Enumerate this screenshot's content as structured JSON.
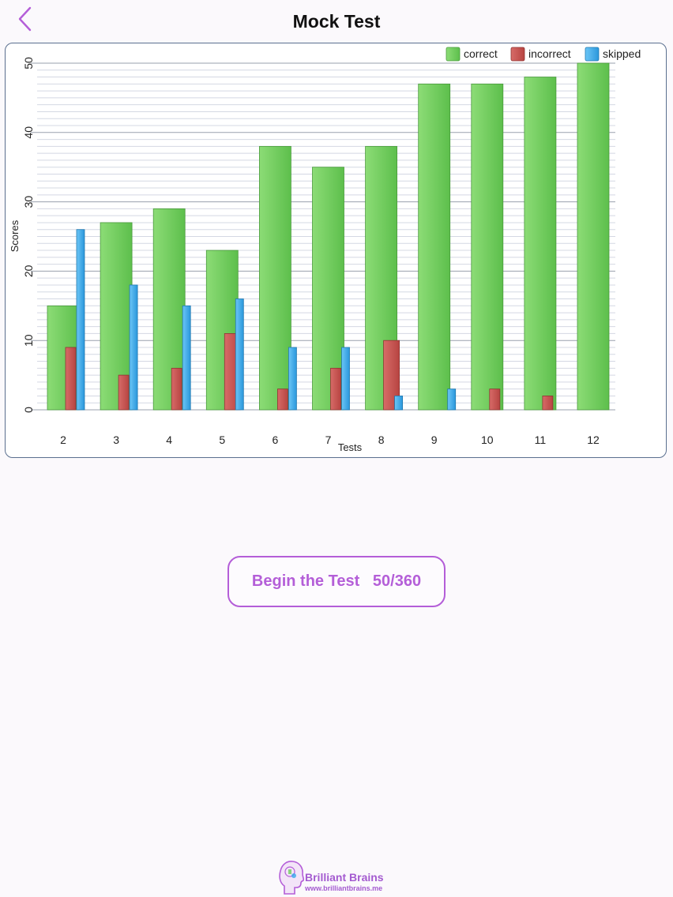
{
  "header": {
    "title": "Mock Test",
    "back_icon": "chevron-left-icon"
  },
  "colors": {
    "accent": "#b45ed8",
    "correct": "#6fce5c",
    "incorrect": "#c65250",
    "skipped": "#34a8ec",
    "card_border": "#5a6f8f"
  },
  "chart_data": {
    "type": "bar",
    "title": "",
    "xlabel": "Tests",
    "ylabel": "Scores",
    "categories": [
      "2",
      "3",
      "4",
      "5",
      "6",
      "7",
      "8",
      "9",
      "10",
      "11",
      "12"
    ],
    "series": [
      {
        "name": "correct",
        "values": [
          15,
          27,
          29,
          23,
          38,
          35,
          38,
          47,
          47,
          48,
          50
        ]
      },
      {
        "name": "incorrect",
        "values": [
          9,
          5,
          6,
          11,
          3,
          6,
          10,
          0,
          3,
          2,
          0
        ]
      },
      {
        "name": "skipped",
        "values": [
          26,
          18,
          15,
          16,
          9,
          9,
          2,
          3,
          0,
          0,
          0
        ]
      }
    ],
    "ylim": [
      0,
      50
    ],
    "yticks": [
      0,
      10,
      20,
      30,
      40,
      50
    ],
    "grid": true,
    "legend": "top-right"
  },
  "actions": {
    "begin_label": "Begin the Test   50/360"
  },
  "brand": {
    "name": "Brilliant Brains",
    "url": "www.brilliantbrains.me",
    "logo_icon": "brain-head-icon"
  }
}
